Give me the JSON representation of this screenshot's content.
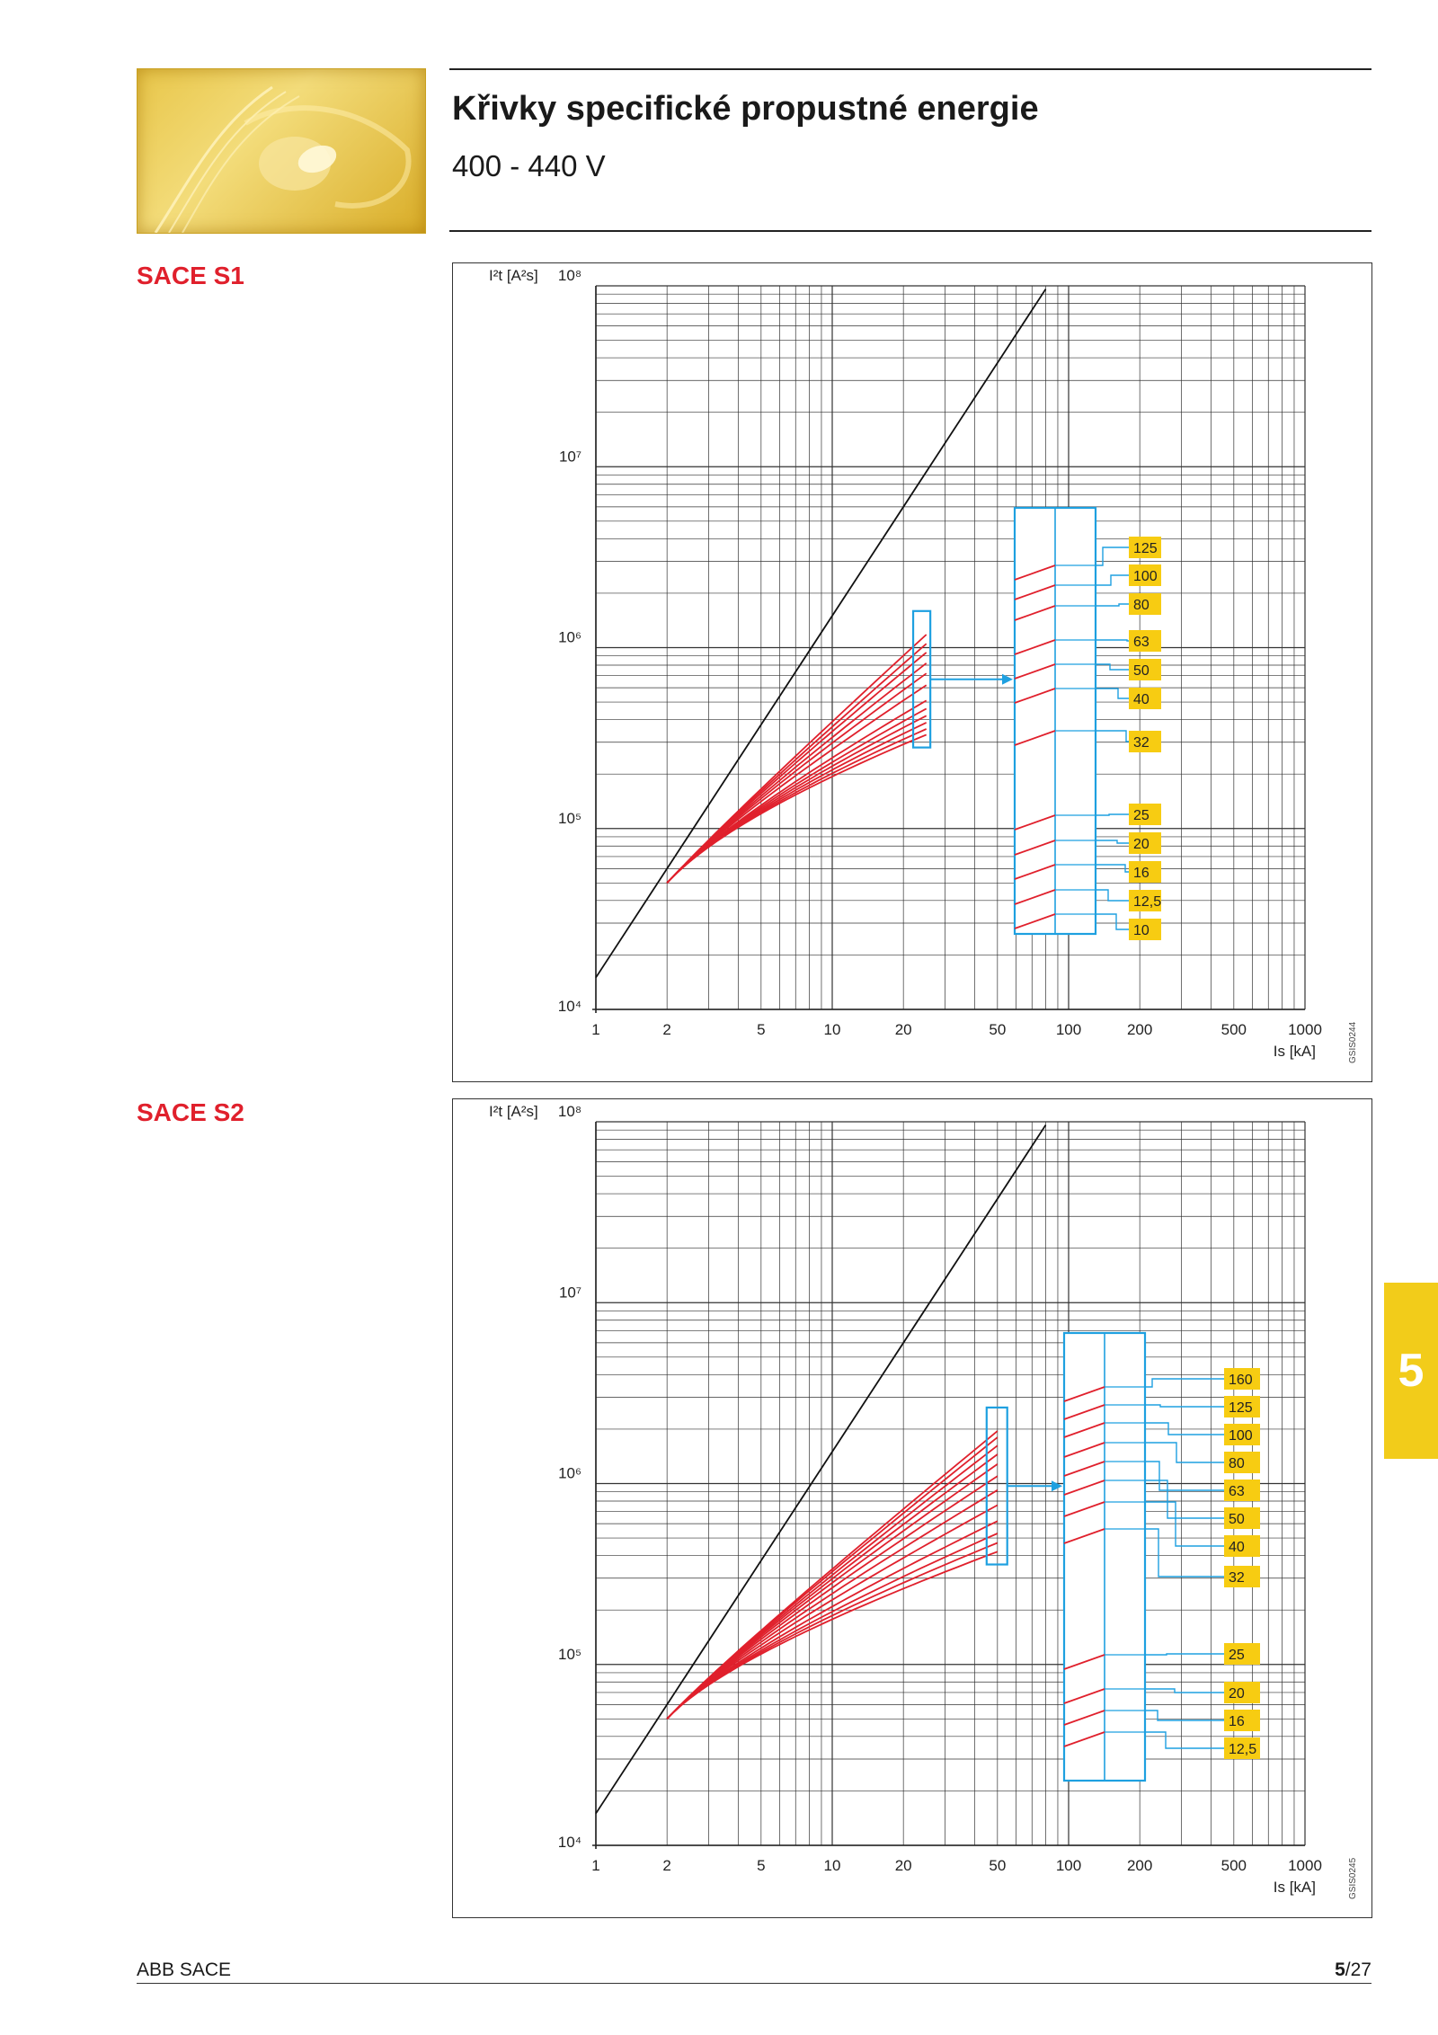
{
  "header": {
    "title": "Křivky specifické propustné energie",
    "subtitle": "400 - 440 V"
  },
  "chapter_tab": "5",
  "footer": {
    "left": "ABB SACE",
    "page_bold": "5",
    "page_rest": "/27"
  },
  "colors": {
    "curve": "#e0202c",
    "callout": "#1ea0e0",
    "label_bg": "#f7cc12",
    "axis": "#222222"
  },
  "chart_data": [
    {
      "type": "line",
      "section_label": "SACE S1",
      "ylabel": "I²t [A²s]",
      "xlabel": "Is [kA]",
      "x_scale": "log",
      "y_scale": "log",
      "xlim": [
        1,
        1000
      ],
      "ylim": [
        10000,
        100000000
      ],
      "x_ticks": [
        "1",
        "2",
        "5",
        "10",
        "20",
        "50",
        "100",
        "200",
        "500",
        "1000"
      ],
      "y_ticks": [
        "10⁴",
        "10⁵",
        "10⁶",
        "10⁷",
        "10⁸"
      ],
      "code": "GSIS0244",
      "limit_line": [
        [
          1,
          15000
        ],
        [
          80,
          96000000
        ]
      ],
      "curve_end_x": 25,
      "zoom_box_x": [
        22,
        26
      ],
      "series": [
        {
          "name": "125",
          "end": 1180000
        },
        {
          "name": "100",
          "end": 1050000
        },
        {
          "name": "80",
          "end": 940000
        },
        {
          "name": "63",
          "end": 820000
        },
        {
          "name": "50",
          "end": 720000
        },
        {
          "name": "40",
          "end": 620000
        },
        {
          "name": "32",
          "end": 510000
        },
        {
          "name": "25",
          "end": 460000
        },
        {
          "name": "20",
          "end": 420000
        },
        {
          "name": "16",
          "end": 385000
        },
        {
          "name": "12,5",
          "end": 355000
        },
        {
          "name": "10",
          "end": 330000
        }
      ],
      "labels": [
        "125",
        "100",
        "80",
        "63",
        "50",
        "40",
        "32",
        "25",
        "20",
        "16",
        "12,5",
        "10"
      ]
    },
    {
      "type": "line",
      "section_label": "SACE S2",
      "ylabel": "I²t [A²s]",
      "xlabel": "Is [kA]",
      "x_scale": "log",
      "y_scale": "log",
      "xlim": [
        1,
        1000
      ],
      "ylim": [
        10000,
        100000000
      ],
      "x_ticks": [
        "1",
        "2",
        "5",
        "10",
        "20",
        "50",
        "100",
        "200",
        "500",
        "1000"
      ],
      "y_ticks": [
        "10⁴",
        "10⁵",
        "10⁶",
        "10⁷",
        "10⁸"
      ],
      "code": "GSIS0245",
      "limit_line": [
        [
          1,
          15000
        ],
        [
          80,
          96000000
        ]
      ],
      "curve_end_x": 50,
      "zoom_box_x": [
        45,
        55
      ],
      "series": [
        {
          "name": "160",
          "end": 1950000
        },
        {
          "name": "125",
          "end": 1800000
        },
        {
          "name": "100",
          "end": 1620000
        },
        {
          "name": "80",
          "end": 1450000
        },
        {
          "name": "63",
          "end": 1280000
        },
        {
          "name": "50",
          "end": 1100000
        },
        {
          "name": "40",
          "end": 920000
        },
        {
          "name": "32",
          "end": 760000
        },
        {
          "name": "25",
          "end": 620000
        },
        {
          "name": "20",
          "end": 530000
        },
        {
          "name": "16",
          "end": 470000
        },
        {
          "name": "12,5",
          "end": 420000
        }
      ],
      "labels": [
        "160",
        "125",
        "100",
        "80",
        "63",
        "50",
        "40",
        "32",
        "25",
        "20",
        "16",
        "12,5"
      ]
    }
  ]
}
